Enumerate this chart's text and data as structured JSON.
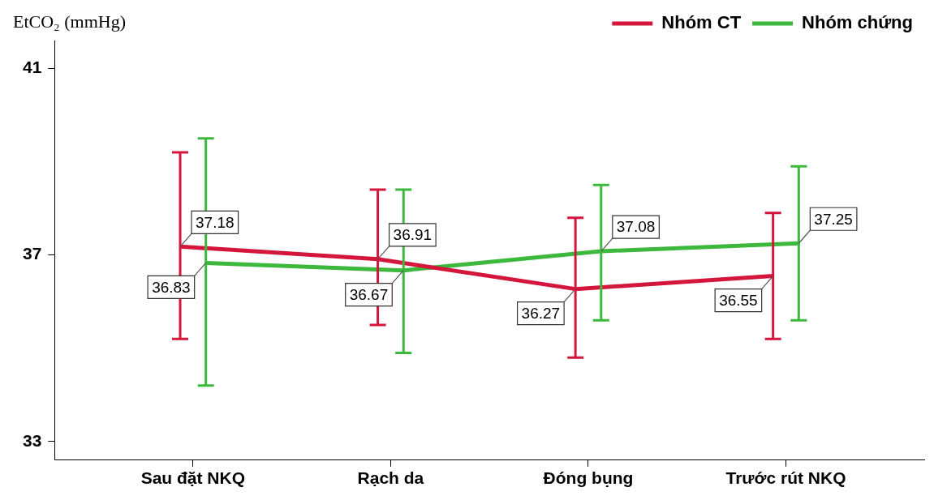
{
  "chart_data": {
    "type": "line",
    "ylabel": "EtCO₂ (mmHg)",
    "categories": [
      "Sau đặt NKQ",
      "Rạch da",
      "Đóng bụng",
      "Trước rút NKQ"
    ],
    "series": [
      {
        "name": "Nhóm CT",
        "color": "#d4163c",
        "values": [
          37.18,
          36.91,
          36.27,
          36.55
        ],
        "errors": [
          [
            35.2,
            39.2
          ],
          [
            35.5,
            38.4
          ],
          [
            34.8,
            37.8
          ],
          [
            35.2,
            37.9
          ]
        ]
      },
      {
        "name": "Nhóm chứng",
        "color": "#3cb93c",
        "values": [
          36.83,
          36.67,
          37.08,
          37.25
        ],
        "errors": [
          [
            34.2,
            39.5
          ],
          [
            34.9,
            38.4
          ],
          [
            35.6,
            38.5
          ],
          [
            35.6,
            38.9
          ]
        ]
      }
    ],
    "ylim": [
      32.6,
      41.6
    ],
    "yticks": [
      33,
      37,
      41
    ],
    "grid": false,
    "legend": "top right",
    "marker": "none",
    "data_labels": true
  }
}
